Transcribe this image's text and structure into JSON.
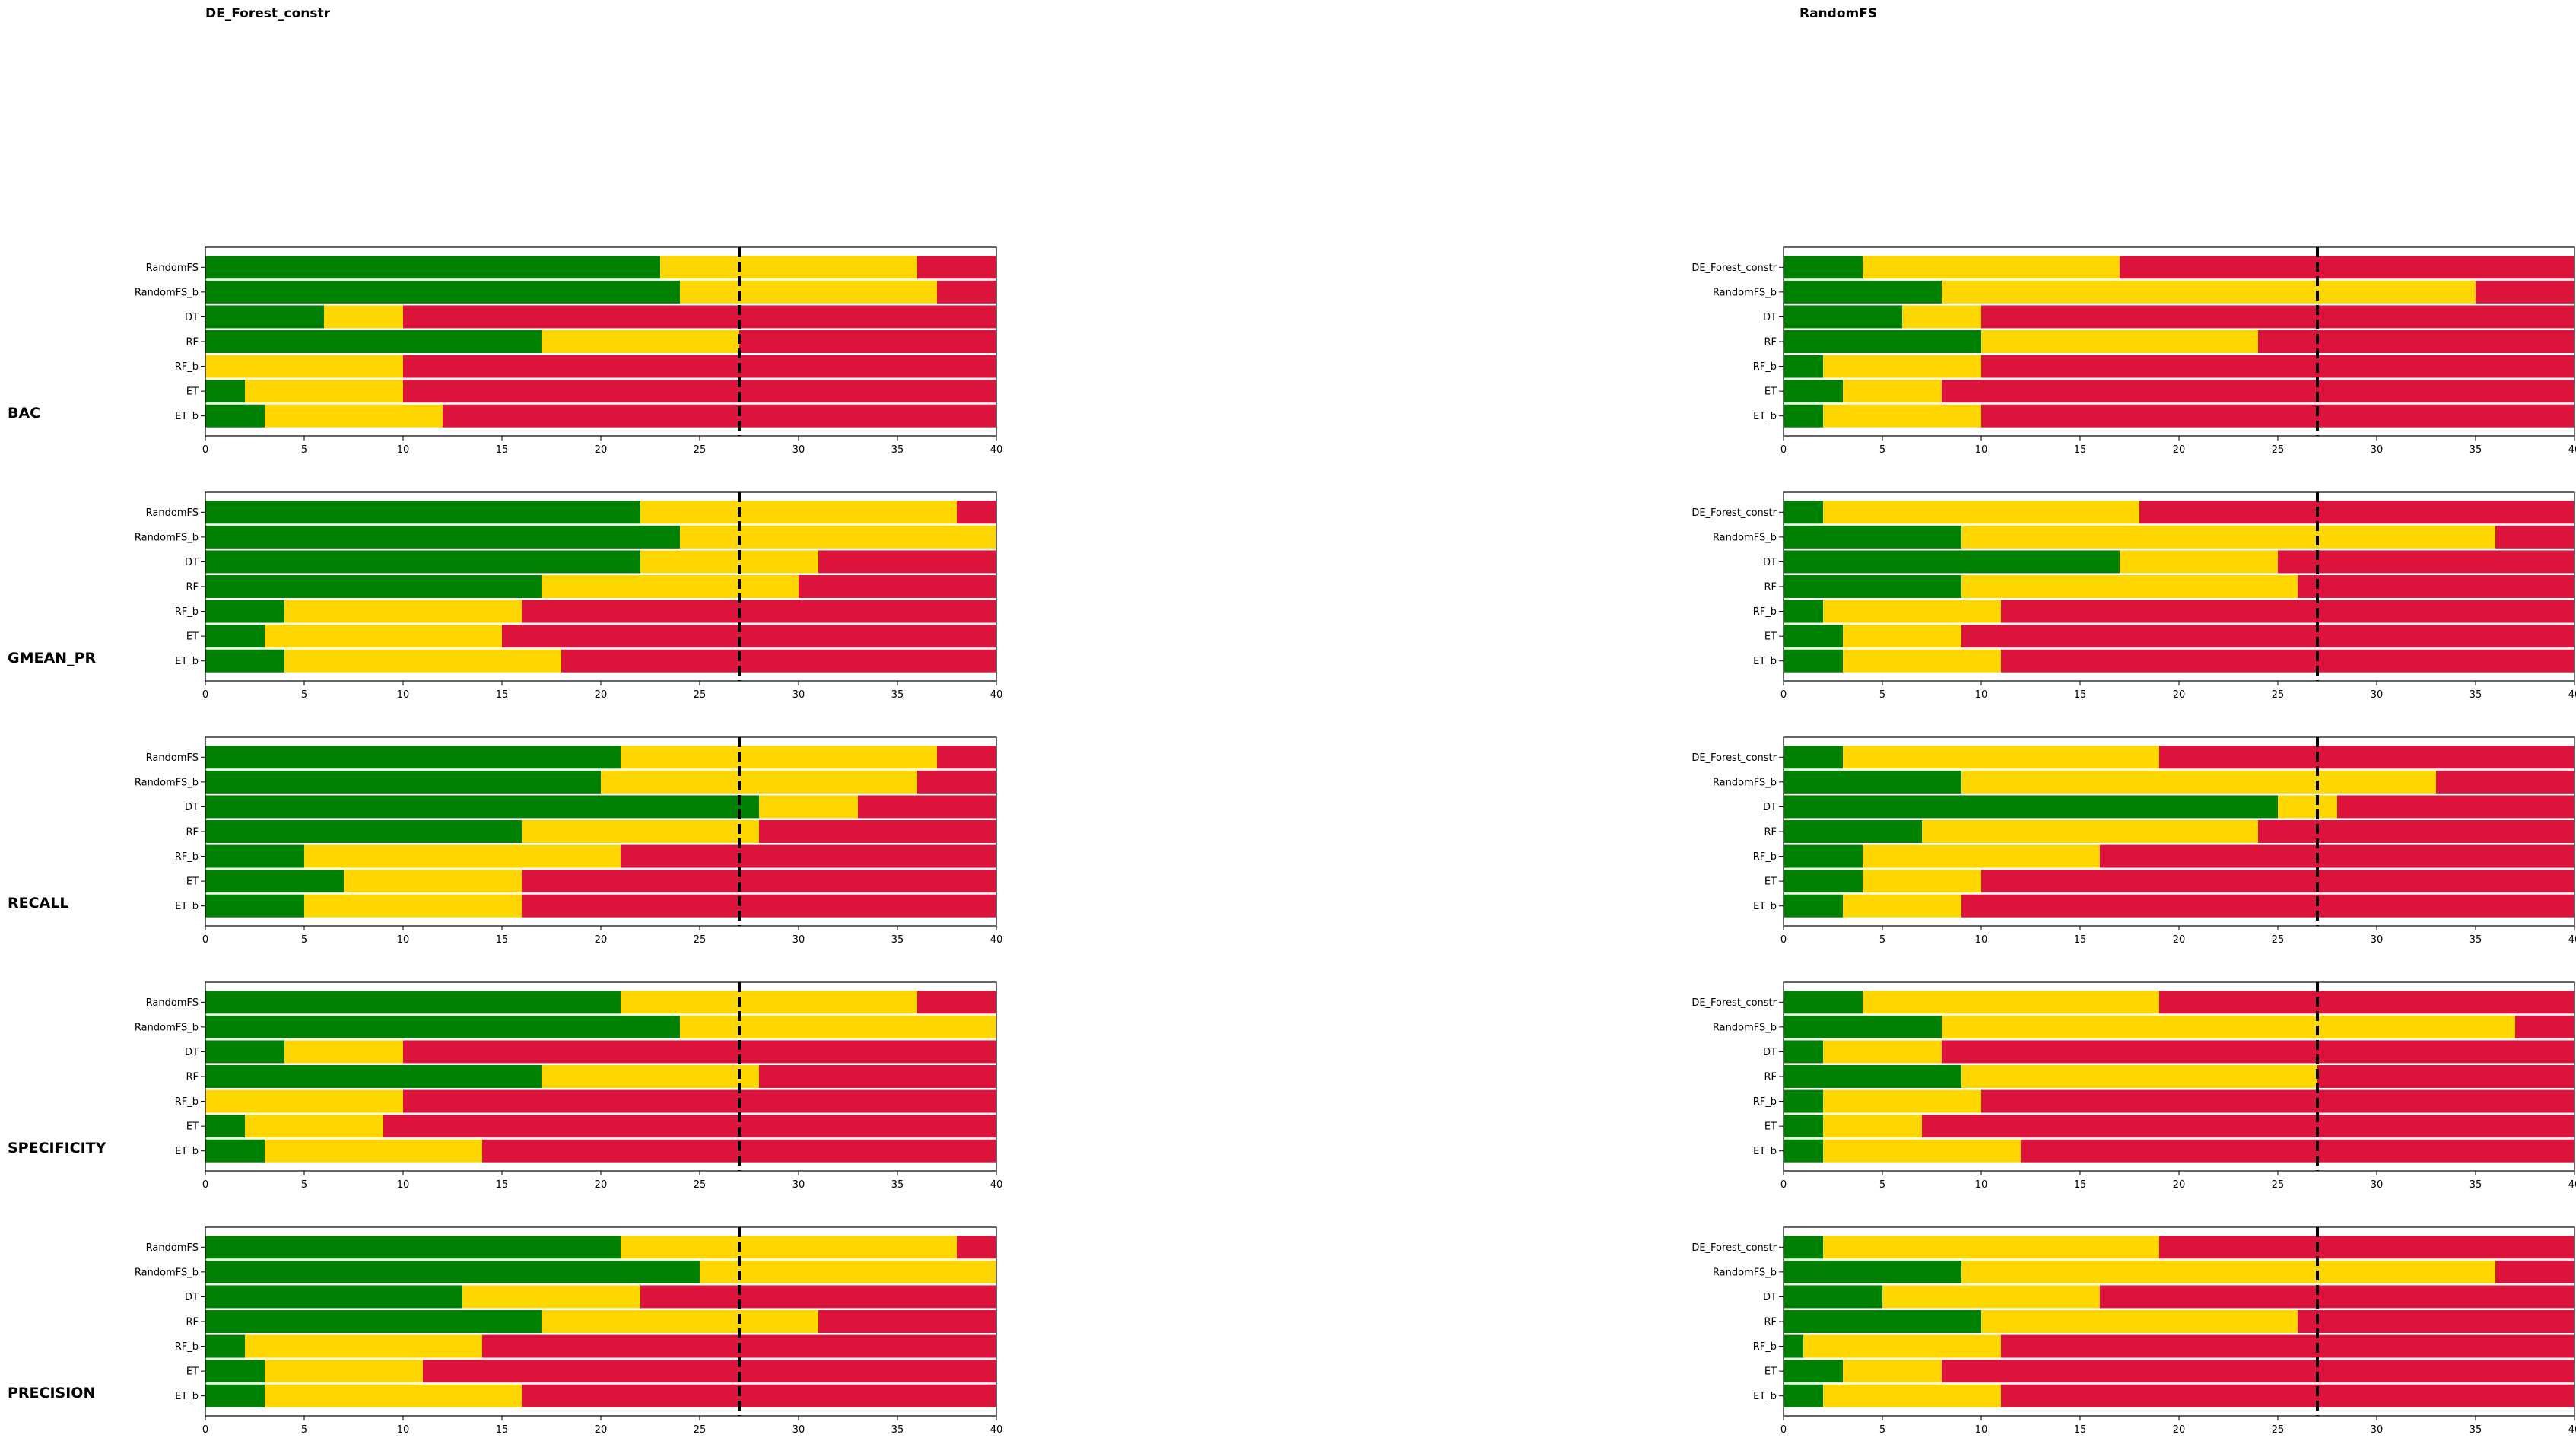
{
  "columns": [
    "DE_Forest_constr",
    "RandomFS"
  ],
  "metrics": [
    "BAC",
    "GMEAN_PR",
    "RECALL",
    "SPECIFICITY",
    "PRECISION"
  ],
  "colors": {
    "win": "#008000",
    "tie": "#ffd700",
    "loss": "#dc143c",
    "critical": "#000000"
  },
  "chart_data": {
    "type": "bar",
    "orientation": "horizontal",
    "stacked": true,
    "xlim": [
      0,
      40
    ],
    "xticks": [
      0,
      5,
      10,
      15,
      20,
      25,
      30,
      35,
      40
    ],
    "critical_value": 27,
    "segments": [
      "win",
      "tie",
      "loss"
    ],
    "panels": [
      {
        "column": "DE_Forest_constr",
        "metric": "BAC",
        "categories": [
          "RandomFS",
          "RandomFS_b",
          "DT",
          "RF",
          "RF_b",
          "ET",
          "ET_b"
        ],
        "win": [
          23,
          24,
          6,
          17,
          0,
          2,
          3
        ],
        "tie": [
          13,
          13,
          4,
          10,
          10,
          8,
          9
        ]
      },
      {
        "column": "DE_Forest_constr",
        "metric": "GMEAN_PR",
        "categories": [
          "RandomFS",
          "RandomFS_b",
          "DT",
          "RF",
          "RF_b",
          "ET",
          "ET_b"
        ],
        "win": [
          22,
          24,
          22,
          17,
          4,
          3,
          4
        ],
        "tie": [
          16,
          16,
          9,
          13,
          12,
          12,
          14
        ]
      },
      {
        "column": "DE_Forest_constr",
        "metric": "RECALL",
        "categories": [
          "RandomFS",
          "RandomFS_b",
          "DT",
          "RF",
          "RF_b",
          "ET",
          "ET_b"
        ],
        "win": [
          21,
          20,
          28,
          16,
          5,
          7,
          5
        ],
        "tie": [
          16,
          16,
          5,
          12,
          16,
          9,
          11
        ]
      },
      {
        "column": "DE_Forest_constr",
        "metric": "SPECIFICITY",
        "categories": [
          "RandomFS",
          "RandomFS_b",
          "DT",
          "RF",
          "RF_b",
          "ET",
          "ET_b"
        ],
        "win": [
          21,
          24,
          4,
          17,
          0,
          2,
          3
        ],
        "tie": [
          15,
          16,
          6,
          11,
          10,
          7,
          11
        ]
      },
      {
        "column": "DE_Forest_constr",
        "metric": "PRECISION",
        "categories": [
          "RandomFS",
          "RandomFS_b",
          "DT",
          "RF",
          "RF_b",
          "ET",
          "ET_b"
        ],
        "win": [
          21,
          25,
          13,
          17,
          2,
          3,
          3
        ],
        "tie": [
          17,
          15,
          9,
          14,
          12,
          8,
          13
        ]
      },
      {
        "column": "RandomFS",
        "metric": "BAC",
        "categories": [
          "DE_Forest_constr",
          "RandomFS_b",
          "DT",
          "RF",
          "RF_b",
          "ET",
          "ET_b"
        ],
        "win": [
          4,
          8,
          6,
          10,
          2,
          3,
          2
        ],
        "tie": [
          13,
          27,
          4,
          14,
          8,
          5,
          8
        ]
      },
      {
        "column": "RandomFS",
        "metric": "GMEAN_PR",
        "categories": [
          "DE_Forest_constr",
          "RandomFS_b",
          "DT",
          "RF",
          "RF_b",
          "ET",
          "ET_b"
        ],
        "win": [
          2,
          9,
          17,
          9,
          2,
          3,
          3
        ],
        "tie": [
          16,
          27,
          8,
          17,
          9,
          6,
          8
        ]
      },
      {
        "column": "RandomFS",
        "metric": "RECALL",
        "categories": [
          "DE_Forest_constr",
          "RandomFS_b",
          "DT",
          "RF",
          "RF_b",
          "ET",
          "ET_b"
        ],
        "win": [
          3,
          9,
          25,
          7,
          4,
          4,
          3
        ],
        "tie": [
          16,
          24,
          3,
          17,
          12,
          6,
          6
        ]
      },
      {
        "column": "RandomFS",
        "metric": "SPECIFICITY",
        "categories": [
          "DE_Forest_constr",
          "RandomFS_b",
          "DT",
          "RF",
          "RF_b",
          "ET",
          "ET_b"
        ],
        "win": [
          4,
          8,
          2,
          9,
          2,
          2,
          2
        ],
        "tie": [
          15,
          29,
          6,
          18,
          8,
          5,
          10
        ]
      },
      {
        "column": "RandomFS",
        "metric": "PRECISION",
        "categories": [
          "DE_Forest_constr",
          "RandomFS_b",
          "DT",
          "RF",
          "RF_b",
          "ET",
          "ET_b"
        ],
        "win": [
          2,
          9,
          5,
          10,
          1,
          3,
          2
        ],
        "tie": [
          17,
          27,
          11,
          16,
          10,
          5,
          9
        ]
      }
    ]
  }
}
